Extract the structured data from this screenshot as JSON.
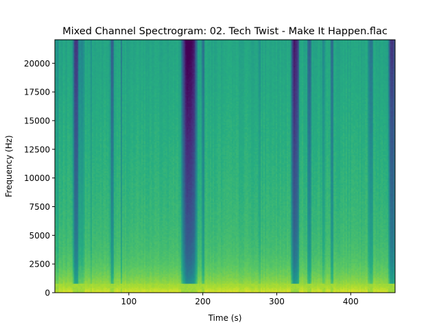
{
  "chart_data": {
    "type": "heatmap",
    "title": "Mixed Channel Spectrogram: 02. Tech Twist - Make It Happen.flac",
    "xlabel": "Time (s)",
    "ylabel": "Frequency (Hz)",
    "xlim": [
      0,
      460
    ],
    "ylim": [
      0,
      22050
    ],
    "x_ticks": [
      100,
      200,
      300,
      400
    ],
    "x_tick_labels": [
      "100",
      "200",
      "300",
      "400"
    ],
    "y_ticks": [
      0,
      2500,
      5000,
      7500,
      10000,
      12500,
      15000,
      17500,
      20000
    ],
    "y_tick_labels": [
      "0",
      "2500",
      "5000",
      "7500",
      "10000",
      "12500",
      "15000",
      "17500",
      "20000"
    ],
    "colormap": "viridis",
    "grid": false,
    "bands": [
      {
        "start": 0,
        "end": 5,
        "level": -0.1
      },
      {
        "start": 24,
        "end": 32,
        "level": -0.45
      },
      {
        "start": 32,
        "end": 40,
        "level": -0.12
      },
      {
        "start": 47,
        "end": 50,
        "level": -0.1
      },
      {
        "start": 74,
        "end": 79,
        "level": -0.3
      },
      {
        "start": 88,
        "end": 90,
        "level": -0.18
      },
      {
        "start": 170,
        "end": 192,
        "level": -0.62
      },
      {
        "start": 198,
        "end": 201,
        "level": -0.25
      },
      {
        "start": 274,
        "end": 278,
        "level": -0.12
      },
      {
        "start": 318,
        "end": 330,
        "level": -0.52
      },
      {
        "start": 340,
        "end": 346,
        "level": -0.3
      },
      {
        "start": 360,
        "end": 364,
        "level": -0.12
      },
      {
        "start": 372,
        "end": 376,
        "level": -0.25
      },
      {
        "start": 422,
        "end": 430,
        "level": -0.2
      },
      {
        "start": 450,
        "end": 460,
        "level": -0.45
      }
    ]
  }
}
